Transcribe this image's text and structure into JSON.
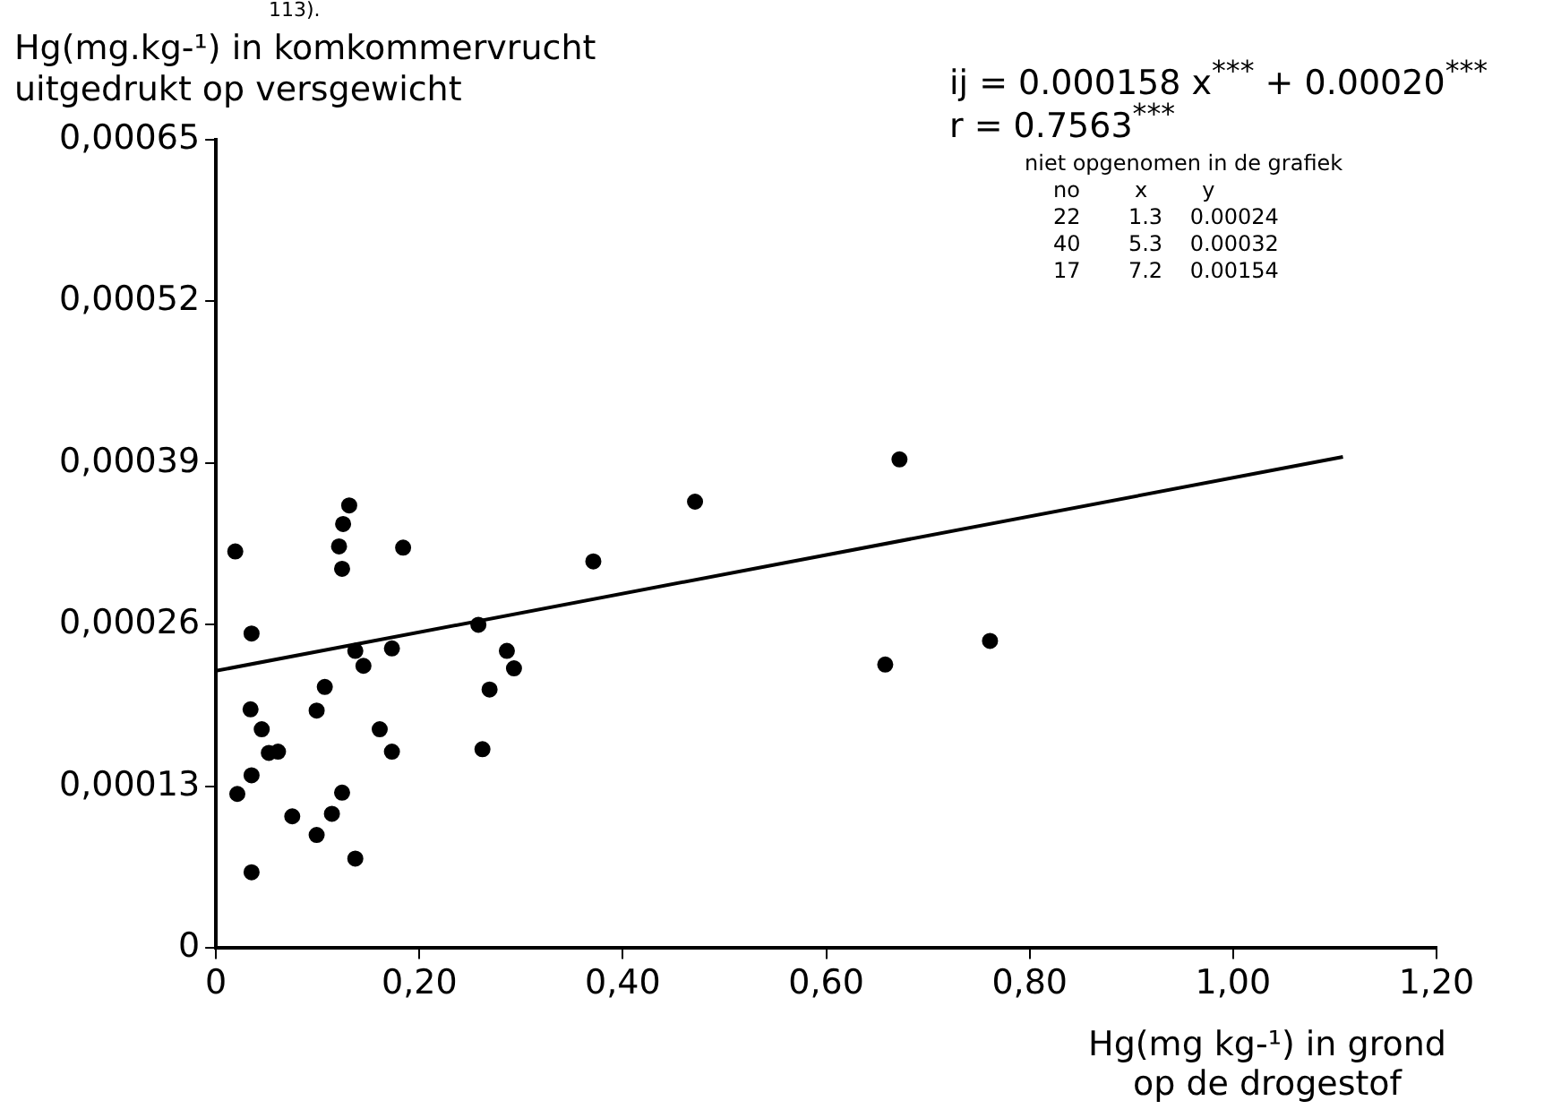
{
  "chart_data": {
    "type": "scatter",
    "ylabel": "Hg(mg.kg-¹) in komkommervrucht uitgedrukt op versgewicht",
    "xlabel": "Hg(mg kg-¹) in grond op de drogestof",
    "annotations": [
      "113).",
      "ij = 0.000158 x$^{***}$ + 0.00020$^{***}$",
      "r = 0.7563$^{***}$",
      "niet opgenomen in de grafiek",
      "no        x        y",
      "22       1.3    0.00024",
      "40       5.3    0.00032",
      "17       7.2    0.00154"
    ],
    "xlim": [
      0,
      1.2
    ],
    "xticks": [
      0,
      {
        "value": 0.2,
        "label": "0,20"
      },
      {
        "value": 0.4,
        "label": "0,40"
      },
      {
        "value": 0.6,
        "label": "0,60"
      },
      {
        "value": 0.8,
        "label": "0,80"
      },
      {
        "value": 1.0,
        "label": "1,00"
      },
      {
        "value": 1.2,
        "label": "1,20"
      }
    ],
    "ylim": [
      0,
      0.00065
    ],
    "yticks": [
      0,
      {
        "value": 0.00013,
        "label": "0,00013"
      },
      {
        "value": 0.00026,
        "label": "0,00026"
      },
      {
        "value": 0.00039,
        "label": "0,00039"
      },
      {
        "value": 0.00052,
        "label": "0,00052"
      },
      {
        "value": 0.00065,
        "label": "0,00065"
      }
    ],
    "grid": false,
    "legend": false,
    "marker": "circle",
    "series": [
      {
        "type": "scatter",
        "color": "#000000",
        "x": [
          0.019,
          0.131,
          0.125,
          0.121,
          0.124,
          0.184,
          0.035,
          0.137,
          0.145,
          0.173,
          0.258,
          0.286,
          0.293,
          0.269,
          0.262,
          0.107,
          0.099,
          0.034,
          0.045,
          0.052,
          0.061,
          0.161,
          0.173,
          0.035,
          0.021,
          0.124,
          0.075,
          0.114,
          0.099,
          0.137,
          0.035,
          0.371,
          0.471,
          0.672,
          0.658,
          0.761
        ],
        "values": [
          0.000319,
          0.000356,
          0.000341,
          0.000323,
          0.000305,
          0.000322,
          0.000253,
          0.000239,
          0.000227,
          0.000241,
          0.00026,
          0.000239,
          0.000225,
          0.000208,
          0.00016,
          0.00021,
          0.000191,
          0.000192,
          0.000176,
          0.000157,
          0.000158,
          0.000176,
          0.000158,
          0.000139,
          0.000124,
          0.000125,
          0.000106,
          0.000108,
          9.1e-05,
          7.2e-05,
          6.1e-05,
          0.000311,
          0.000359,
          0.000393,
          0.000228,
          0.000247
        ]
      },
      {
        "type": "line",
        "color": "#000000",
        "marker": "none",
        "line_style": "solid",
        "x": [
          0,
          1.108
        ],
        "values": [
          0.000223,
          0.000395
        ]
      }
    ]
  }
}
